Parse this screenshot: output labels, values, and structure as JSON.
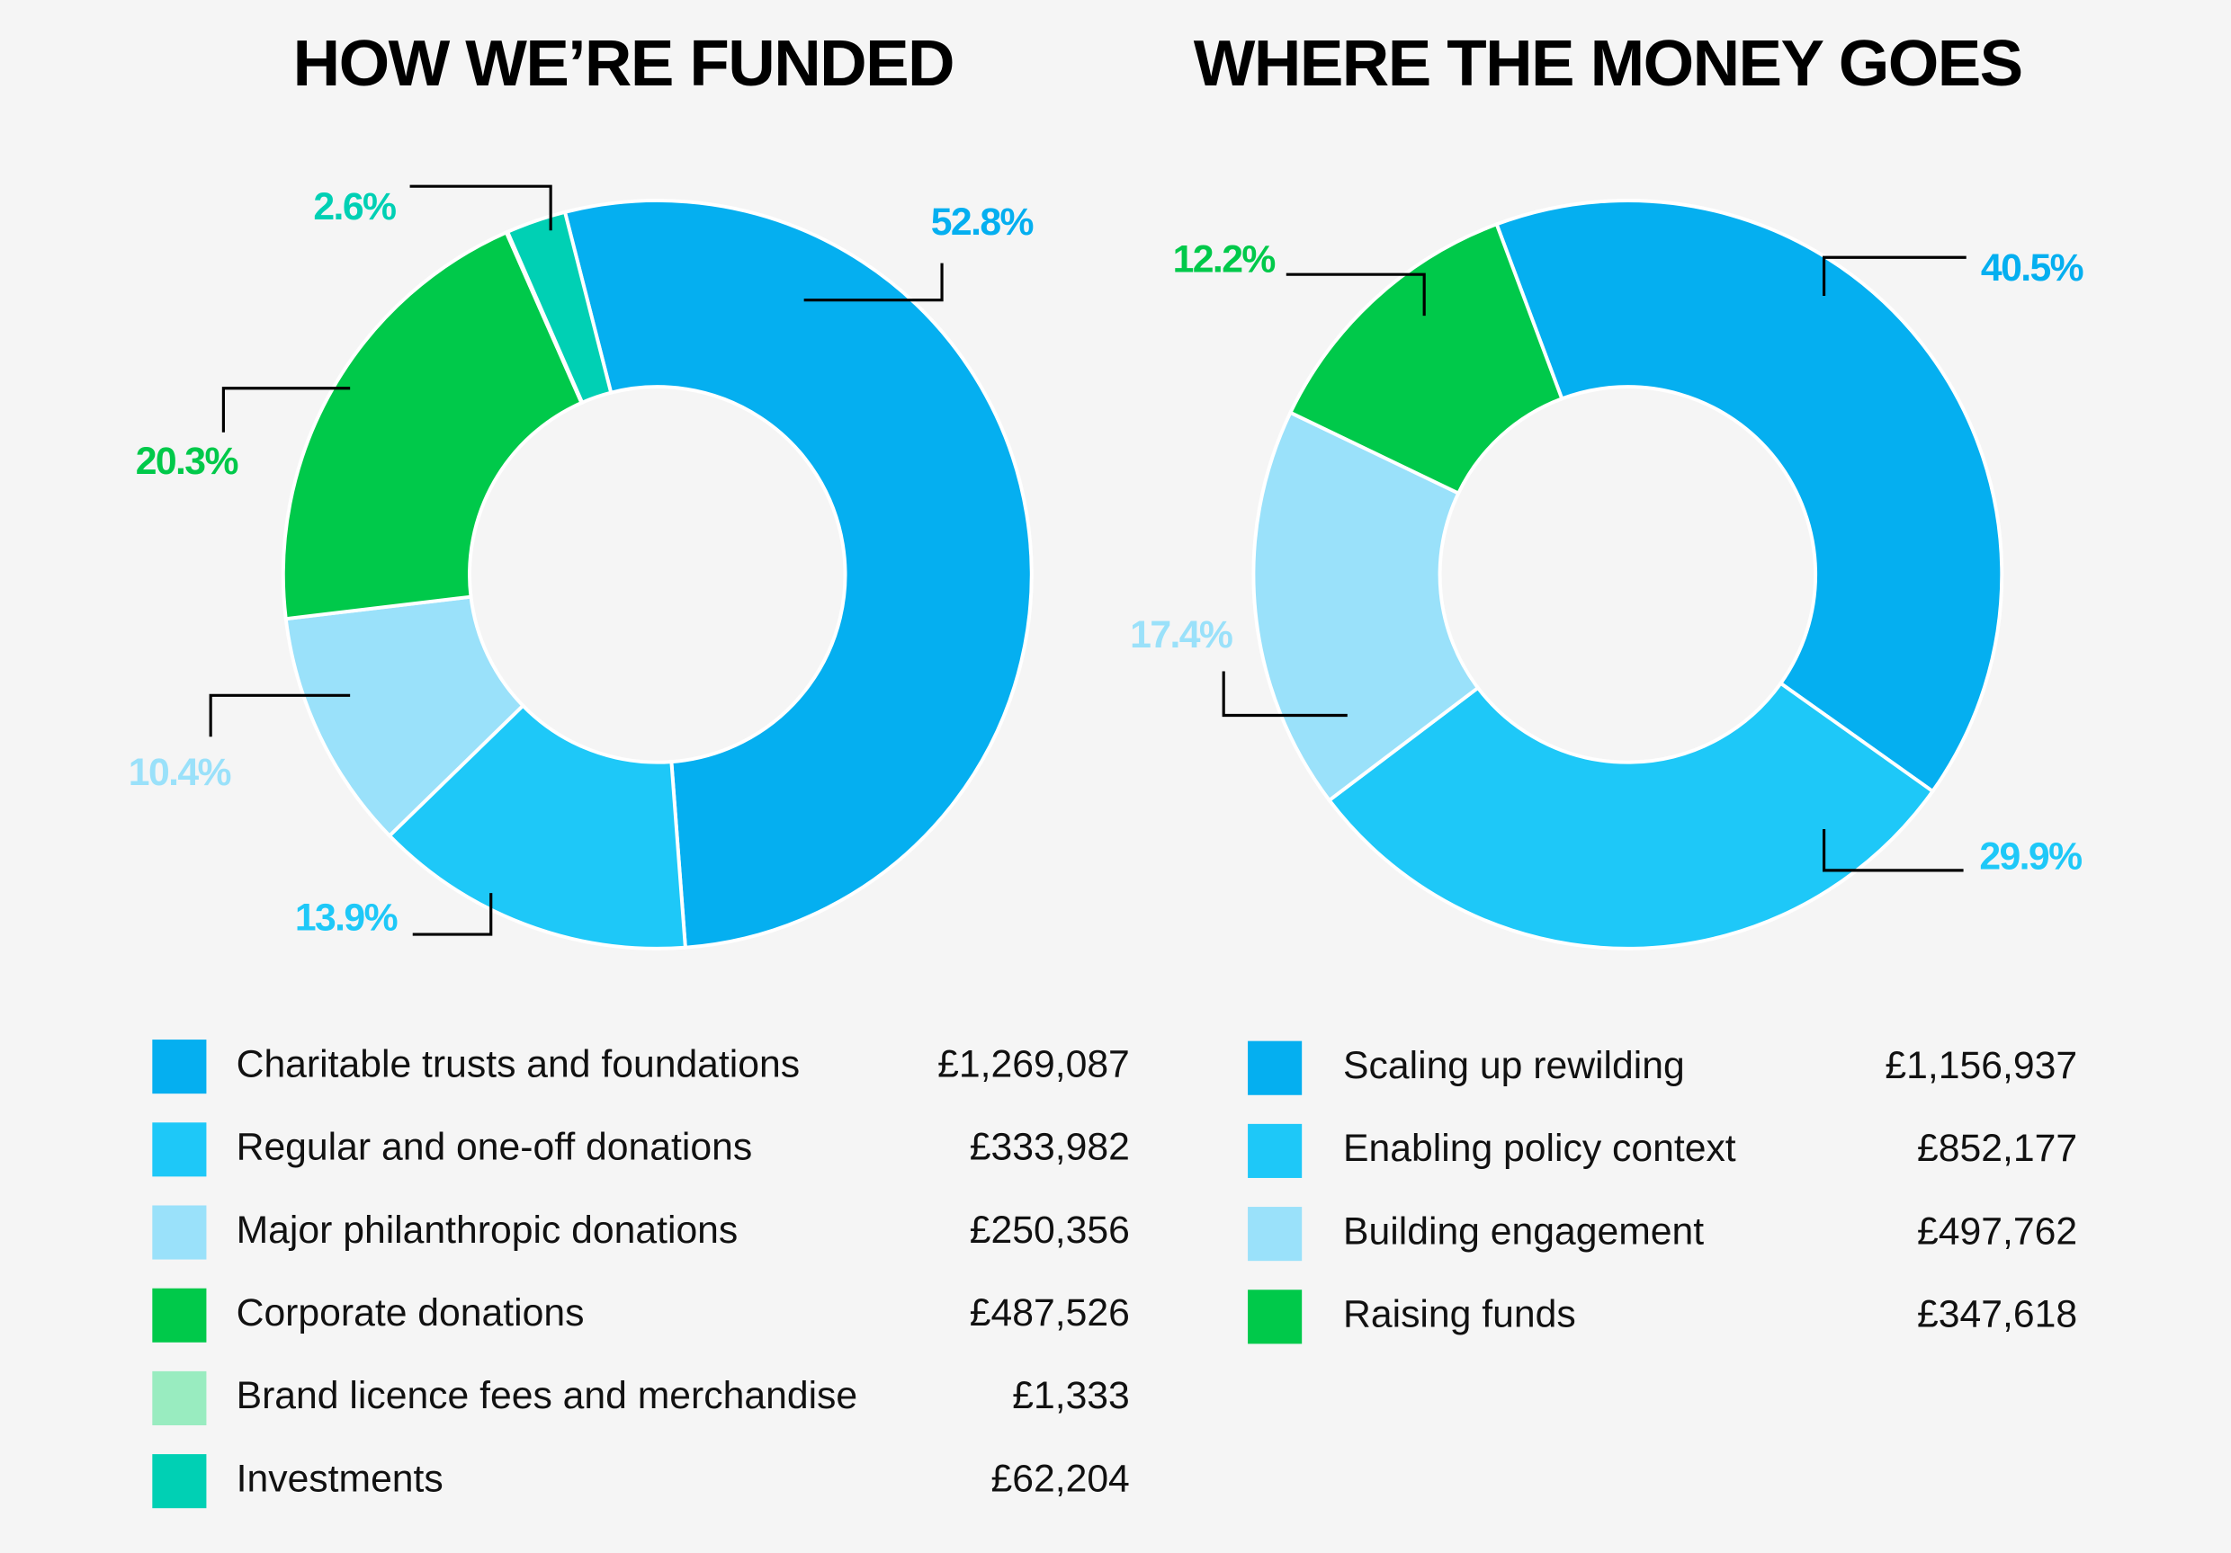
{
  "chart_data": [
    {
      "type": "donut",
      "title": "HOW WE’RE FUNDED",
      "categories": [
        "Charitable trusts and foundations",
        "Regular and one-off donations",
        "Major philanthropic donations",
        "Corporate donations",
        "Brand licence fees and merchandise",
        "Investments"
      ],
      "values": [
        1269087,
        333982,
        250356,
        487526,
        1333,
        62204
      ],
      "value_labels": [
        "£1,269,087",
        "£333,982",
        "£250,356",
        "£487,526",
        "£1,333",
        "£62,204"
      ],
      "percent_labels": [
        "52.8%",
        "13.9%",
        "10.4%",
        "20.3%",
        null,
        "2.6%"
      ],
      "colors": [
        "#05aff0",
        "#1ec8f8",
        "#9ae1fa",
        "#00c94a",
        "#99ecc0",
        "#00d0b4"
      ]
    },
    {
      "type": "donut",
      "title": "WHERE THE MONEY GOES",
      "categories": [
        "Scaling up rewilding",
        "Enabling policy context",
        "Building engagement",
        "Raising funds"
      ],
      "values": [
        1156937,
        852177,
        497762,
        347618
      ],
      "value_labels": [
        "£1,156,937",
        "£852,177",
        "£497,762",
        "£347,618"
      ],
      "percent_labels": [
        "40.5%",
        "29.9%",
        "17.4%",
        "12.2%"
      ],
      "colors": [
        "#05aff0",
        "#1ec8f8",
        "#9ae1fa",
        "#00c94a"
      ]
    }
  ]
}
